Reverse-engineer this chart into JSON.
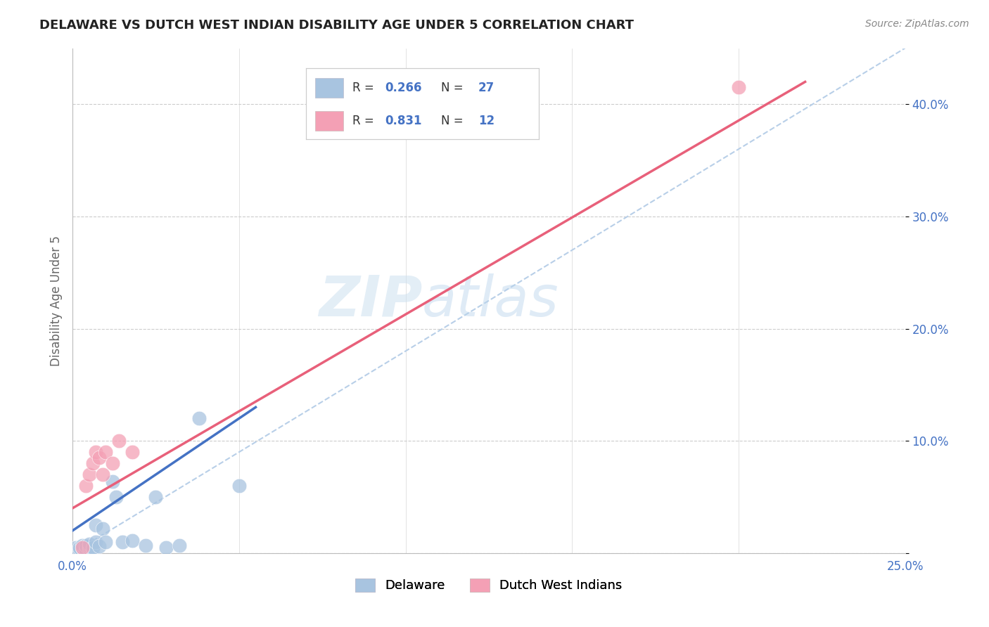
{
  "title": "DELAWARE VS DUTCH WEST INDIAN DISABILITY AGE UNDER 5 CORRELATION CHART",
  "source": "Source: ZipAtlas.com",
  "ylabel": "Disability Age Under 5",
  "xlim": [
    0.0,
    0.25
  ],
  "ylim": [
    0.0,
    0.45
  ],
  "xticks": [
    0.0,
    0.05,
    0.1,
    0.15,
    0.2,
    0.25
  ],
  "yticks": [
    0.0,
    0.1,
    0.2,
    0.3,
    0.4
  ],
  "background_color": "#ffffff",
  "watermark_zip": "ZIP",
  "watermark_atlas": "atlas",
  "delaware_color": "#a8c4e0",
  "dutch_color": "#f4a0b5",
  "delaware_line_color": "#4472c4",
  "dutch_line_color": "#e8607a",
  "diagonal_color": "#b8cfe8",
  "legend_R_delaware": "0.266",
  "legend_N_delaware": "27",
  "legend_R_dutch": "0.831",
  "legend_N_dutch": "12",
  "delaware_x": [
    0.001,
    0.002,
    0.002,
    0.003,
    0.003,
    0.004,
    0.004,
    0.005,
    0.005,
    0.005,
    0.006,
    0.006,
    0.007,
    0.007,
    0.008,
    0.009,
    0.01,
    0.012,
    0.013,
    0.015,
    0.018,
    0.022,
    0.025,
    0.028,
    0.032,
    0.038,
    0.05
  ],
  "delaware_y": [
    0.005,
    0.003,
    0.005,
    0.005,
    0.007,
    0.003,
    0.007,
    0.004,
    0.006,
    0.008,
    0.003,
    0.005,
    0.01,
    0.025,
    0.006,
    0.022,
    0.01,
    0.064,
    0.05,
    0.01,
    0.011,
    0.007,
    0.05,
    0.005,
    0.007,
    0.12,
    0.06
  ],
  "dutch_x": [
    0.003,
    0.004,
    0.005,
    0.006,
    0.007,
    0.008,
    0.009,
    0.01,
    0.012,
    0.014,
    0.018,
    0.2
  ],
  "dutch_y": [
    0.005,
    0.06,
    0.07,
    0.08,
    0.09,
    0.085,
    0.07,
    0.09,
    0.08,
    0.1,
    0.09,
    0.415
  ],
  "delaware_trend_x": [
    0.0,
    0.055
  ],
  "delaware_trend_y": [
    0.02,
    0.13
  ],
  "dutch_trend_x": [
    0.0,
    0.22
  ],
  "dutch_trend_y": [
    0.04,
    0.42
  ]
}
